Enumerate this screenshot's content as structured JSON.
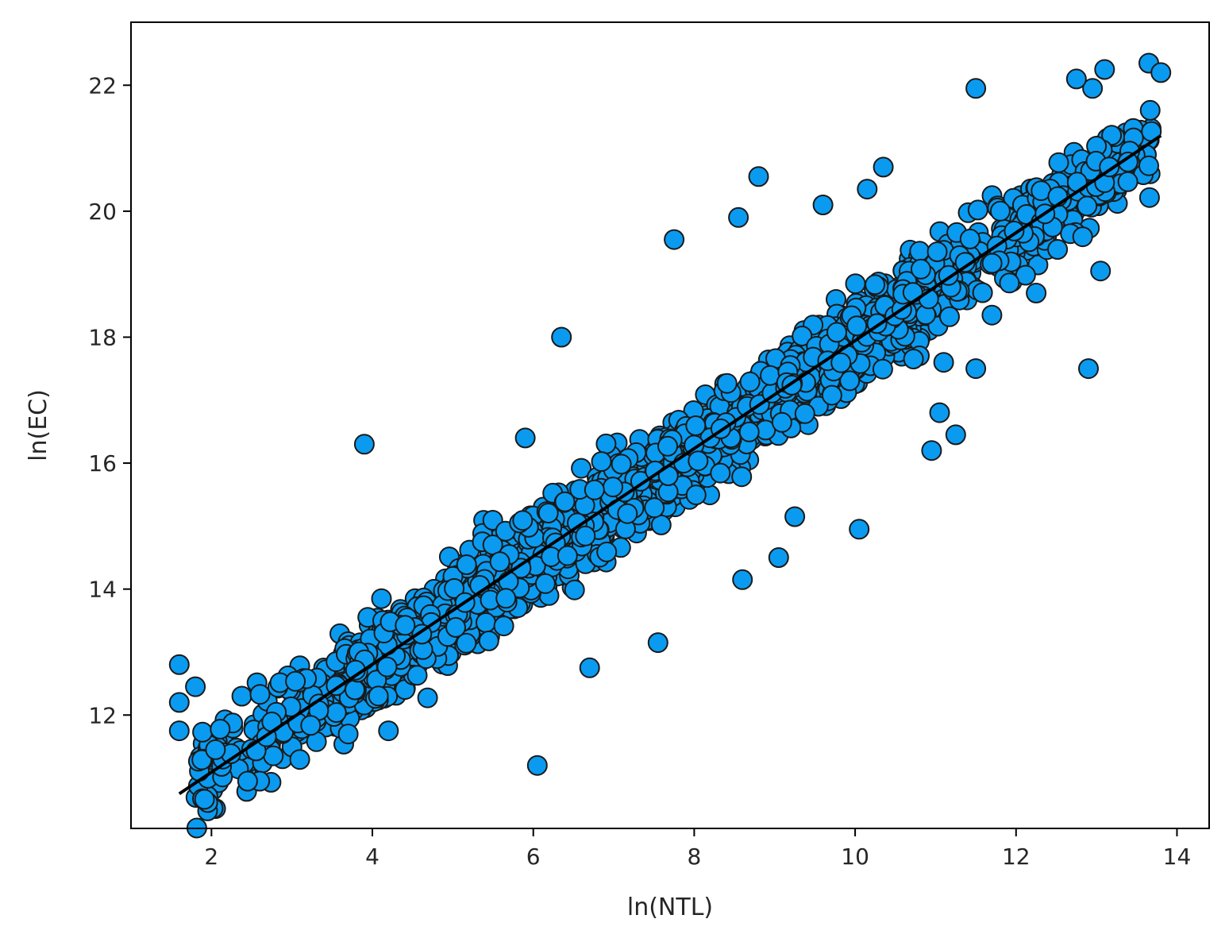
{
  "chart_data": {
    "type": "scatter",
    "title": "",
    "xlabel": "ln(NTL)",
    "ylabel": "ln(EC)",
    "xlim": [
      1.0,
      14.4
    ],
    "ylim": [
      10.2,
      23.0
    ],
    "xticks": [
      2,
      4,
      6,
      8,
      10,
      12,
      14
    ],
    "yticks": [
      12,
      14,
      16,
      18,
      20,
      22
    ],
    "grid": false,
    "legend": "none",
    "marker_color": "#0a9bf0",
    "marker_edge_color": "#1a1a1a",
    "fit_line_color": "#000000",
    "fit_line": {
      "x": [
        1.6,
        13.8
      ],
      "y": [
        10.75,
        21.2
      ]
    },
    "outliers": [
      {
        "x": 3.9,
        "y": 16.3
      },
      {
        "x": 6.35,
        "y": 18.0
      },
      {
        "x": 7.75,
        "y": 19.55
      },
      {
        "x": 8.8,
        "y": 20.55
      },
      {
        "x": 8.55,
        "y": 19.9
      },
      {
        "x": 6.05,
        "y": 11.2
      },
      {
        "x": 11.5,
        "y": 21.95
      },
      {
        "x": 10.05,
        "y": 14.95
      },
      {
        "x": 12.9,
        "y": 17.5
      },
      {
        "x": 13.05,
        "y": 19.05
      },
      {
        "x": 10.95,
        "y": 16.2
      },
      {
        "x": 11.25,
        "y": 16.45
      },
      {
        "x": 11.05,
        "y": 16.8
      },
      {
        "x": 1.6,
        "y": 12.8
      },
      {
        "x": 1.8,
        "y": 12.45
      },
      {
        "x": 1.6,
        "y": 11.75
      },
      {
        "x": 1.6,
        "y": 12.2
      },
      {
        "x": 2.05,
        "y": 11.45
      },
      {
        "x": 2.6,
        "y": 10.95
      },
      {
        "x": 2.45,
        "y": 10.95
      },
      {
        "x": 8.6,
        "y": 14.15
      },
      {
        "x": 9.05,
        "y": 14.5
      },
      {
        "x": 9.25,
        "y": 15.15
      },
      {
        "x": 7.55,
        "y": 13.15
      },
      {
        "x": 6.7,
        "y": 12.75
      },
      {
        "x": 5.9,
        "y": 16.4
      },
      {
        "x": 10.35,
        "y": 20.7
      },
      {
        "x": 10.15,
        "y": 20.35
      },
      {
        "x": 9.6,
        "y": 20.1
      },
      {
        "x": 12.95,
        "y": 21.95
      },
      {
        "x": 13.1,
        "y": 22.25
      },
      {
        "x": 13.65,
        "y": 22.35
      },
      {
        "x": 13.8,
        "y": 22.2
      },
      {
        "x": 12.75,
        "y": 22.1
      },
      {
        "x": 11.7,
        "y": 18.35
      },
      {
        "x": 12.25,
        "y": 18.7
      },
      {
        "x": 11.5,
        "y": 17.5
      },
      {
        "x": 11.1,
        "y": 17.6
      },
      {
        "x": 4.2,
        "y": 11.75
      },
      {
        "x": 3.7,
        "y": 11.7
      }
    ]
  }
}
